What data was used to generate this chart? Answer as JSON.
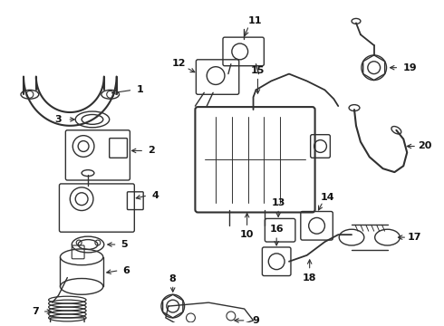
{
  "background_color": "#ffffff",
  "line_color": "#303030",
  "text_color": "#101010",
  "figsize": [
    4.9,
    3.6
  ],
  "dpi": 100,
  "lw": 1.0
}
